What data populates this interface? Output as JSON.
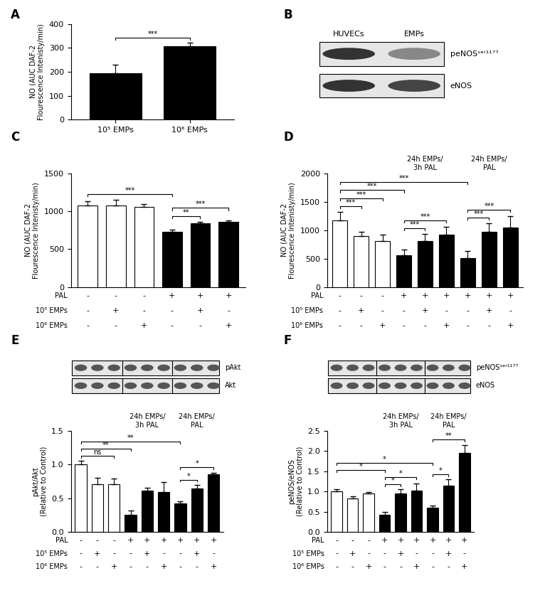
{
  "chart_data": [
    {
      "panel_label": "A",
      "type": "bar",
      "categories": [
        "10⁵ EMPs",
        "10⁶ EMPs"
      ],
      "values": [
        195,
        307
      ],
      "errors": [
        35,
        15
      ],
      "colors": [
        "#000000",
        "#000000"
      ],
      "y_label": "NO (AUC DAF-2\nFlourescence Intenisty/min)",
      "ylim": [
        0,
        400
      ],
      "yticks": [
        0,
        100,
        200,
        300,
        400
      ],
      "significance": [
        {
          "from": 0,
          "to": 1,
          "label": "***"
        }
      ]
    },
    {
      "panel_label": "B",
      "type": "blot",
      "lanes": [
        "HUVECs",
        "EMPs"
      ],
      "rows": [
        "peNOSˢᵉʳ¹¹⁷⁷",
        "eNOS"
      ]
    },
    {
      "panel_label": "C",
      "type": "bar",
      "tick_labels": "y",
      "values": [
        1080,
        1075,
        1055,
        730,
        840,
        860
      ],
      "errors": [
        50,
        80,
        40,
        30,
        25,
        20
      ],
      "colors": [
        "#ffffff",
        "#ffffff",
        "#ffffff",
        "#000000",
        "#000000",
        "#000000"
      ],
      "y_label": "NO (AUC DAF-2\nFlourescence Intenisty/min)",
      "ylim": [
        0,
        1500
      ],
      "yticks": [
        0,
        500,
        1000,
        1500
      ],
      "conditions": [
        {
          "name": "PAL",
          "signs": [
            "-",
            "-",
            "-",
            "+",
            "+",
            "+"
          ]
        },
        {
          "name": "10⁵ EMPs",
          "signs": [
            "-",
            "+",
            "-",
            "-",
            "+",
            "-"
          ]
        },
        {
          "name": "10⁶ EMPs",
          "signs": [
            "-",
            "-",
            "+",
            "-",
            "-",
            "+"
          ]
        }
      ],
      "significance": [
        {
          "from": 0,
          "to": 3,
          "label": "***"
        },
        {
          "from": 3,
          "to": 4,
          "label": "**"
        },
        {
          "from": 3,
          "to": 5,
          "label": "***"
        }
      ]
    },
    {
      "panel_label": "D",
      "type": "bar",
      "tick_labels": "y",
      "values": [
        1175,
        900,
        810,
        555,
        815,
        925,
        515,
        970,
        1050
      ],
      "errors": [
        150,
        70,
        110,
        110,
        120,
        140,
        120,
        150,
        200
      ],
      "colors": [
        "#ffffff",
        "#ffffff",
        "#ffffff",
        "#000000",
        "#000000",
        "#000000",
        "#000000",
        "#000000",
        "#000000"
      ],
      "y_label": "NO (AUC DAF-2\nFlourescence Intenisty/min)",
      "ylim": [
        0,
        2000
      ],
      "yticks": [
        0,
        500,
        1000,
        1500,
        2000
      ],
      "groups": [
        {
          "label": "24h EMPs/\n3h PAL",
          "from": 3,
          "to": 5
        },
        {
          "label": "24h EMPs/\nPAL",
          "from": 6,
          "to": 8
        }
      ],
      "conditions": [
        {
          "name": "PAL",
          "signs": [
            "-",
            "-",
            "-",
            "+",
            "+",
            "+",
            "+",
            "+",
            "+"
          ]
        },
        {
          "name": "10⁵ EMPs",
          "signs": [
            "-",
            "+",
            "-",
            "-",
            "+",
            "-",
            "-",
            "+",
            "-"
          ]
        },
        {
          "name": "10⁶ EMPs",
          "signs": [
            "-",
            "-",
            "+",
            "-",
            "-",
            "+",
            "-",
            "-",
            "+"
          ]
        }
      ],
      "significance": [
        {
          "from": 0,
          "to": 1,
          "label": "***"
        },
        {
          "from": 0,
          "to": 2,
          "label": "***"
        },
        {
          "from": 0,
          "to": 3,
          "label": "***"
        },
        {
          "from": 0,
          "to": 6,
          "label": "***"
        },
        {
          "from": 3,
          "to": 4,
          "label": "***"
        },
        {
          "from": 3,
          "to": 5,
          "label": "***"
        },
        {
          "from": 6,
          "to": 7,
          "label": "***"
        },
        {
          "from": 6,
          "to": 8,
          "label": "***"
        }
      ]
    },
    {
      "panel_label": "E",
      "type": "bar",
      "tick_labels": "y",
      "blot_rows": [
        "pAkt",
        "Akt"
      ],
      "values": [
        1.0,
        0.71,
        0.71,
        0.26,
        0.61,
        0.59,
        0.43,
        0.65,
        0.85
      ],
      "errors": [
        0.05,
        0.09,
        0.08,
        0.06,
        0.05,
        0.15,
        0.03,
        0.05,
        0.03
      ],
      "colors": [
        "#ffffff",
        "#ffffff",
        "#ffffff",
        "#000000",
        "#000000",
        "#000000",
        "#000000",
        "#000000",
        "#000000"
      ],
      "y_label": "pAkt/Akt\n(Relative to Control)",
      "ylim": [
        0,
        1.5
      ],
      "yticks": [
        {
          "value": 0,
          "label": "0.0"
        },
        {
          "value": 0.5,
          "label": "0.5"
        },
        {
          "value": 1,
          "label": "1.0"
        },
        {
          "value": 1.5,
          "label": "1.5"
        }
      ],
      "groups": [
        {
          "label": "24h EMPs/\n3h PAL",
          "from": 3,
          "to": 5
        },
        {
          "label": "24h EMPs/\nPAL",
          "from": 6,
          "to": 8
        }
      ],
      "conditions": [
        {
          "name": "PAL",
          "signs": [
            "-",
            "-",
            "-",
            "+",
            "+",
            "+",
            "+",
            "+",
            "+"
          ]
        },
        {
          "name": "10⁵ EMPs",
          "signs": [
            "-",
            "+",
            "-",
            "-",
            "+",
            "-",
            "-",
            "+",
            "-"
          ]
        },
        {
          "name": "10⁶ EMPs",
          "signs": [
            "-",
            "-",
            "+",
            "-",
            "-",
            "+",
            "-",
            "-",
            "+"
          ]
        }
      ],
      "significance": [
        {
          "from": 0,
          "to": 2,
          "label": "ns"
        },
        {
          "from": 0,
          "to": 3,
          "label": "**"
        },
        {
          "from": 0,
          "to": 6,
          "label": "**"
        },
        {
          "from": 6,
          "to": 7,
          "label": "*"
        },
        {
          "from": 6,
          "to": 8,
          "label": "*"
        }
      ]
    },
    {
      "panel_label": "F",
      "type": "bar",
      "tick_labels": "y",
      "blot_rows": [
        "peNOSˢᵉʳ¹¹⁷⁷",
        "eNOS"
      ],
      "values": [
        1.0,
        0.83,
        0.95,
        0.43,
        0.95,
        1.03,
        0.6,
        1.15,
        1.95
      ],
      "errors": [
        0.05,
        0.05,
        0.04,
        0.07,
        0.1,
        0.16,
        0.05,
        0.15,
        0.2
      ],
      "colors": [
        "#ffffff",
        "#ffffff",
        "#ffffff",
        "#000000",
        "#000000",
        "#000000",
        "#000000",
        "#000000",
        "#000000"
      ],
      "y_label": "peNOS/eNOS\n(Relative to Control)",
      "ylim": [
        0,
        2.5
      ],
      "yticks": [
        {
          "value": 0,
          "label": "0.0"
        },
        {
          "value": 0.5,
          "label": "0.5"
        },
        {
          "value": 1,
          "label": "1.0"
        },
        {
          "value": 1.5,
          "label": "1.5"
        },
        {
          "value": 2,
          "label": "2.0"
        },
        {
          "value": 2.5,
          "label": "2.5"
        }
      ],
      "groups": [
        {
          "label": "24h EMPs/\n3h PAL",
          "from": 3,
          "to": 5
        },
        {
          "label": "24h EMPs/\nPAL",
          "from": 6,
          "to": 8
        }
      ],
      "conditions": [
        {
          "name": "PAL",
          "signs": [
            "-",
            "-",
            "-",
            "+",
            "+",
            "+",
            "+",
            "+",
            "+"
          ]
        },
        {
          "name": "10⁵ EMPs",
          "signs": [
            "-",
            "+",
            "-",
            "-",
            "+",
            "-",
            "-",
            "+",
            "-"
          ]
        },
        {
          "name": "10⁶ EMPs",
          "signs": [
            "-",
            "-",
            "+",
            "-",
            "-",
            "+",
            "-",
            "-",
            "+"
          ]
        }
      ],
      "significance": [
        {
          "from": 3,
          "to": 4,
          "label": "*"
        },
        {
          "from": 3,
          "to": 5,
          "label": "*"
        },
        {
          "from": 6,
          "to": 7,
          "label": "*"
        },
        {
          "from": 6,
          "to": 8,
          "label": "**"
        },
        {
          "from": 0,
          "to": 3,
          "label": "*"
        },
        {
          "from": 0,
          "to": 6,
          "label": "*"
        }
      ]
    }
  ]
}
